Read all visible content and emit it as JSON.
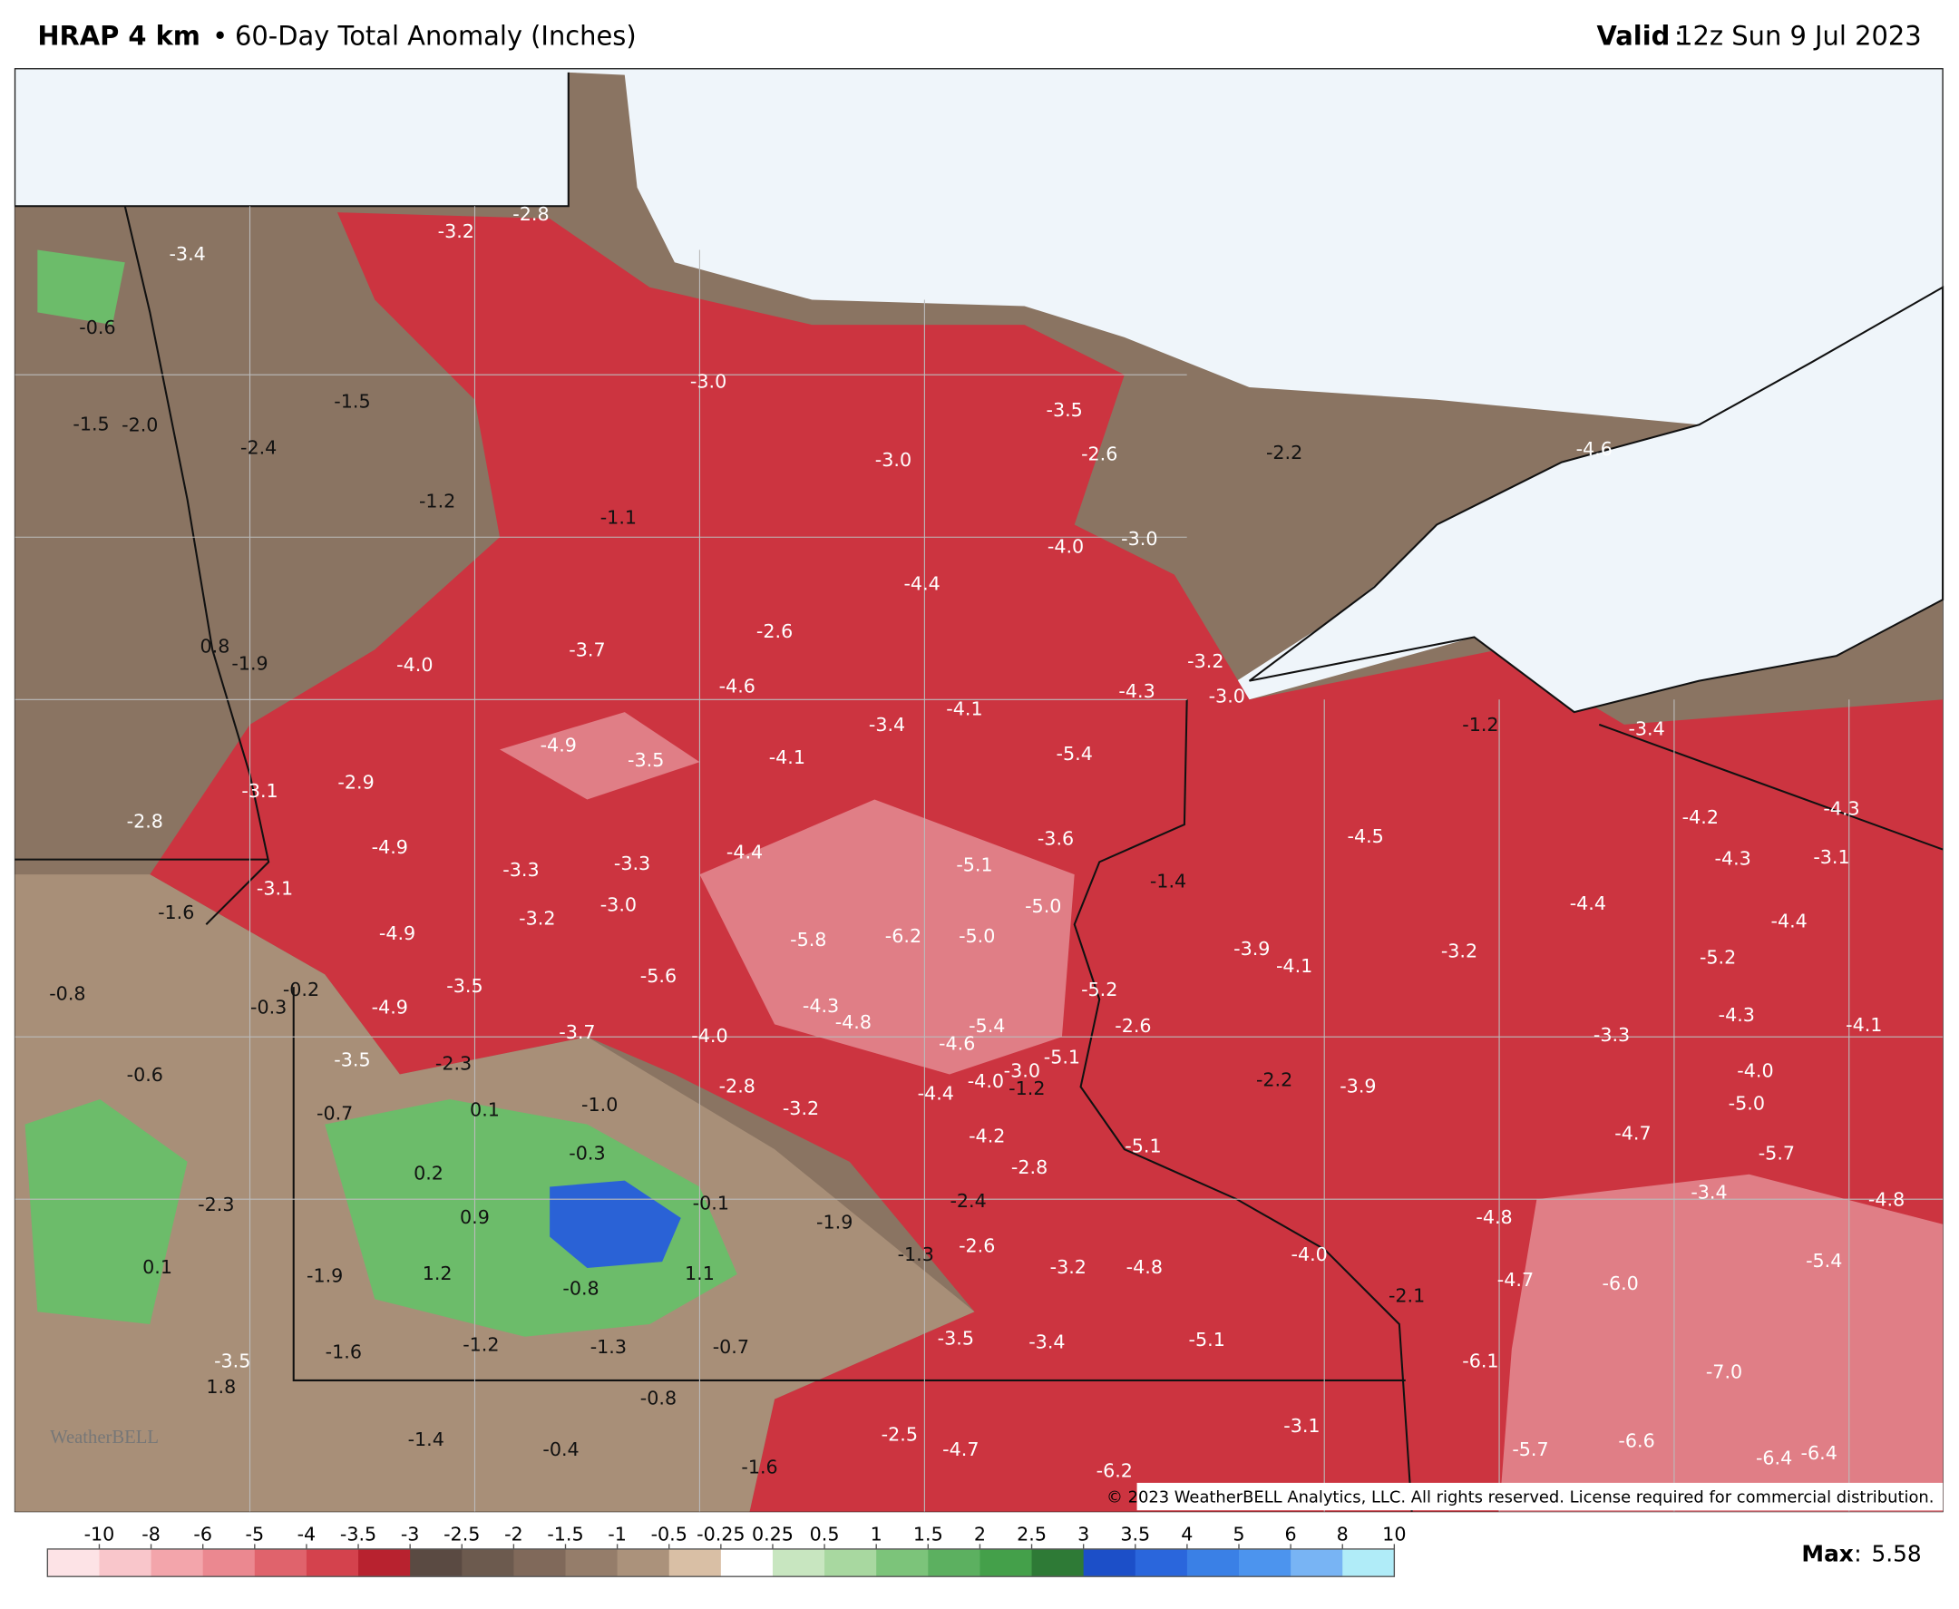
{
  "header": {
    "product": "HRAP 4 km",
    "title": "60-Day Total Anomaly (Inches)",
    "valid_label": "Valid",
    "valid": "12z Sun 9 Jul 2023"
  },
  "map": {
    "labels": [
      "-3.4",
      "-3.2",
      "-2.8",
      "-0.6",
      "-1.5",
      "-1.5",
      "-2.0",
      "-2.4",
      "-1.2",
      "-1.1",
      "-3.0",
      "-3.5",
      "-2.6",
      "-3.0",
      "-2.2",
      "-4.6",
      "-4.0",
      "-3.0",
      "-4.4",
      "-2.6",
      "-3.7",
      "0.8",
      "-1.9",
      "-4.0",
      "-4.6",
      "-3.2",
      "-3.0",
      "-4.3",
      "-4.1",
      "-3.4",
      "-4.9",
      "-3.5",
      "-4.1",
      "-5.4",
      "-1.2",
      "-3.4",
      "-3.1",
      "-2.9",
      "-2.8",
      "-4.9",
      "-3.3",
      "-3.3",
      "-4.4",
      "-5.1",
      "-3.6",
      "-4.5",
      "-4.2",
      "-4.3",
      "-4.3",
      "-3.1",
      "-1.6",
      "-3.1",
      "-4.9",
      "-3.2",
      "-3.0",
      "-5.8",
      "-6.2",
      "-5.0",
      "-5.0",
      "-1.4",
      "-3.9",
      "-4.1",
      "-3.2",
      "-4.4",
      "-4.4",
      "-5.2",
      "-0.8",
      "-0.3",
      "-0.2",
      "-4.9",
      "-3.5",
      "-5.6",
      "-4.3",
      "-4.8",
      "-5.4",
      "-4.6",
      "-5.2",
      "-2.6",
      "-3.7",
      "-4.0",
      "-3.3",
      "-4.3",
      "-4.1",
      "-3.5",
      "-2.3",
      "-0.6",
      "-2.8",
      "-3.2",
      "-4.4",
      "-4.0",
      "-3.0",
      "-1.2",
      "-5.1",
      "-2.2",
      "-3.9",
      "-4.0",
      "-5.0",
      "-0.7",
      "0.1",
      "-1.0",
      "-4.2",
      "-5.1",
      "-4.7",
      "-5.7",
      "-0.3",
      "0.2",
      "-2.8",
      "-2.3",
      "0.9",
      "-0.1",
      "-1.9",
      "-2.4",
      "-3.4",
      "-4.8",
      "-4.8",
      "-2.6",
      "-1.3",
      "-4.0",
      "0.1",
      "-1.9",
      "1.2",
      "-0.8",
      "1.1",
      "-3.2",
      "-4.8",
      "-4.7",
      "-6.0",
      "-5.4",
      "-2.1",
      "-3.5",
      "-3.4",
      "-5.1",
      "-1.6",
      "-1.2",
      "-1.3",
      "-0.7",
      "-3.5",
      "-6.1",
      "-7.0",
      "1.8",
      "-0.8",
      "-3.1",
      "-2.5",
      "-4.7",
      "-1.4",
      "-0.4",
      "-1.6",
      "-6.2",
      "-5.7",
      "-6.6",
      "-6.4",
      "-6.4"
    ],
    "copyright": "© 2023 WeatherBELL Analytics, LLC. All rights reserved. License required for commercial distribution.",
    "logo": "WeatherBELL"
  },
  "colorbar": {
    "ticks": [
      -10,
      -8,
      -6,
      -5,
      -4,
      -3.5,
      -3,
      -2.5,
      -2,
      -1.5,
      -1,
      -0.5,
      -0.25,
      0.25,
      0.5,
      1,
      1.5,
      2,
      2.5,
      3,
      3.5,
      4,
      5,
      6,
      8,
      10
    ],
    "colors": [
      "#fde3e6",
      "#f9c6cb",
      "#f3a5ab",
      "#eb8890",
      "#e0636c",
      "#d4424d",
      "#b8222f",
      "#5a4a42",
      "#6c5a4e",
      "#80695a",
      "#957d6a",
      "#ab927b",
      "#d9bfa5",
      "#ffffff",
      "#c8e6c0",
      "#a8d8a0",
      "#7cc47a",
      "#5cb060",
      "#44a04a",
      "#2e7a36",
      "#1c4fc8",
      "#2a66dc",
      "#3a80e6",
      "#4c94ee",
      "#78b4f4",
      "#b0ecf8"
    ]
  },
  "max": {
    "label": "Max",
    "value": 5.58
  }
}
